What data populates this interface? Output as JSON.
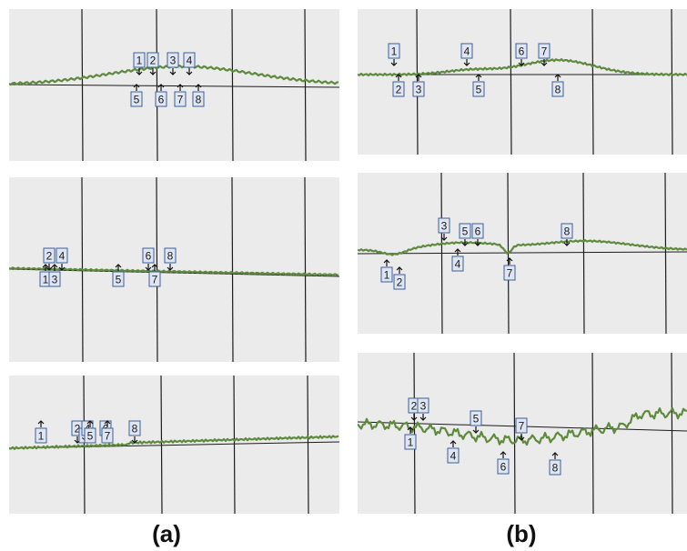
{
  "figure": {
    "captions": {
      "a": "(a)",
      "b": "(b)"
    },
    "colors": {
      "paper": "#ebebeb",
      "grid": "#1c1c1c",
      "trace": "#5d8a3c",
      "marker_fill": "#dfe6f2",
      "marker_stroke": "#3d5f9a"
    },
    "panels": [
      {
        "id": "a1",
        "column": "a",
        "labels": [
          "1",
          "2",
          "3",
          "4",
          "5",
          "6",
          "7",
          "8"
        ]
      },
      {
        "id": "a2",
        "column": "a",
        "labels": [
          "1",
          "2",
          "3",
          "4",
          "5",
          "6",
          "7",
          "8"
        ]
      },
      {
        "id": "a3",
        "column": "a",
        "labels": [
          "1",
          "2",
          "3",
          "4",
          "5",
          "6",
          "7",
          "8"
        ]
      },
      {
        "id": "b1",
        "column": "b",
        "labels": [
          "1",
          "2",
          "3",
          "4",
          "5",
          "6",
          "7",
          "8"
        ]
      },
      {
        "id": "b2",
        "column": "b",
        "labels": [
          "1",
          "2",
          "3",
          "4",
          "5",
          "6",
          "7",
          "8"
        ]
      },
      {
        "id": "b3",
        "column": "b",
        "labels": [
          "1",
          "2",
          "3",
          "4",
          "5",
          "6",
          "7",
          "8"
        ]
      }
    ]
  }
}
